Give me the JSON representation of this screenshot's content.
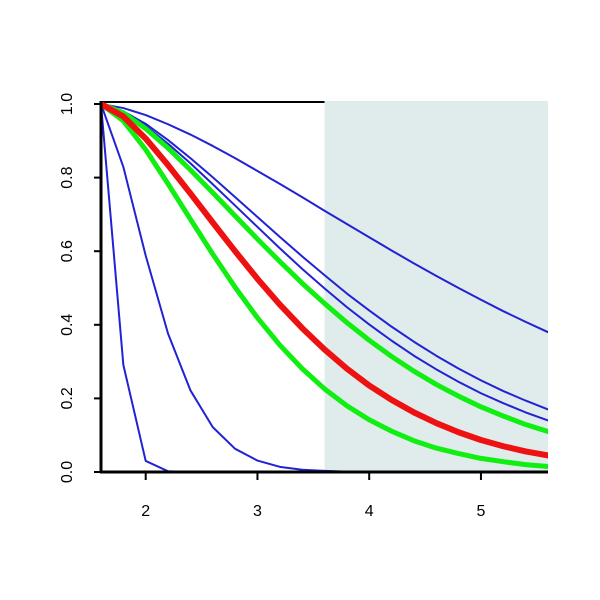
{
  "chart_data": {
    "type": "line",
    "x": [
      1.6,
      1.8,
      2.0,
      2.2,
      2.4,
      2.6,
      2.8,
      3.0,
      3.2,
      3.4,
      3.6,
      3.8,
      4.0,
      4.2,
      4.4,
      4.6,
      4.8,
      5.0,
      5.2,
      5.4,
      5.6
    ],
    "series": [
      {
        "color": "#2222d4",
        "line_width": 2,
        "values": [
          1,
          0.989,
          0.97,
          0.945,
          0.917,
          0.886,
          0.853,
          0.818,
          0.783,
          0.747,
          0.71,
          0.674,
          0.638,
          0.602,
          0.567,
          0.533,
          0.5,
          0.468,
          0.437,
          0.408,
          0.38
        ]
      },
      {
        "color": "#2222d4",
        "line_width": 2,
        "values": [
          1,
          0.98,
          0.946,
          0.902,
          0.853,
          0.801,
          0.747,
          0.693,
          0.639,
          0.586,
          0.535,
          0.485,
          0.439,
          0.395,
          0.354,
          0.316,
          0.281,
          0.249,
          0.22,
          0.194,
          0.17
        ]
      },
      {
        "color": "#2222d4",
        "line_width": 2,
        "values": [
          1,
          0.978,
          0.94,
          0.892,
          0.839,
          0.782,
          0.724,
          0.666,
          0.608,
          0.552,
          0.499,
          0.448,
          0.401,
          0.357,
          0.316,
          0.279,
          0.245,
          0.214,
          0.187,
          0.162,
          0.14
        ]
      },
      {
        "color": "#2222d4",
        "line_width": 2,
        "values": [
          1,
          0.829,
          0.588,
          0.376,
          0.222,
          0.122,
          0.063,
          0.031,
          0.014,
          0.006,
          0.003,
          0.001,
          0,
          0,
          0,
          0,
          0,
          0,
          0,
          0,
          0
        ]
      },
      {
        "color": "#2222d4",
        "line_width": 2,
        "values": [
          1,
          0.291,
          0.03,
          0.002,
          0,
          0,
          0,
          0,
          0,
          0,
          0,
          0,
          0,
          0,
          0,
          0,
          0,
          0,
          0,
          0,
          0
        ]
      },
      {
        "color": "#11ee11",
        "line_width": 5,
        "values": [
          1,
          0.976,
          0.933,
          0.88,
          0.821,
          0.759,
          0.696,
          0.633,
          0.572,
          0.513,
          0.458,
          0.406,
          0.358,
          0.314,
          0.274,
          0.238,
          0.206,
          0.177,
          0.152,
          0.129,
          0.11
        ]
      },
      {
        "color": "#11ee11",
        "line_width": 5,
        "values": [
          1,
          0.954,
          0.876,
          0.783,
          0.687,
          0.592,
          0.502,
          0.419,
          0.345,
          0.281,
          0.226,
          0.18,
          0.142,
          0.111,
          0.085,
          0.065,
          0.05,
          0.037,
          0.028,
          0.02,
          0.015
        ]
      },
      {
        "color": "#ee1111",
        "line_width": 6,
        "values": [
          1,
          0.966,
          0.906,
          0.834,
          0.757,
          0.678,
          0.6,
          0.525,
          0.455,
          0.391,
          0.333,
          0.281,
          0.235,
          0.196,
          0.162,
          0.133,
          0.108,
          0.087,
          0.07,
          0.056,
          0.045
        ]
      }
    ],
    "highlight": {
      "x": [
        3.6,
        5.6
      ],
      "color": "#dfeceb"
    },
    "xlim": [
      1.6,
      5.6
    ],
    "xticks": [
      2,
      3,
      4,
      5
    ],
    "ylim": [
      0,
      1
    ],
    "yticks": [
      {
        "value": 0,
        "label": "0.0"
      },
      0.2,
      0.4,
      0.6,
      0.8,
      {
        "value": 1,
        "label": "1.0"
      }
    ]
  }
}
